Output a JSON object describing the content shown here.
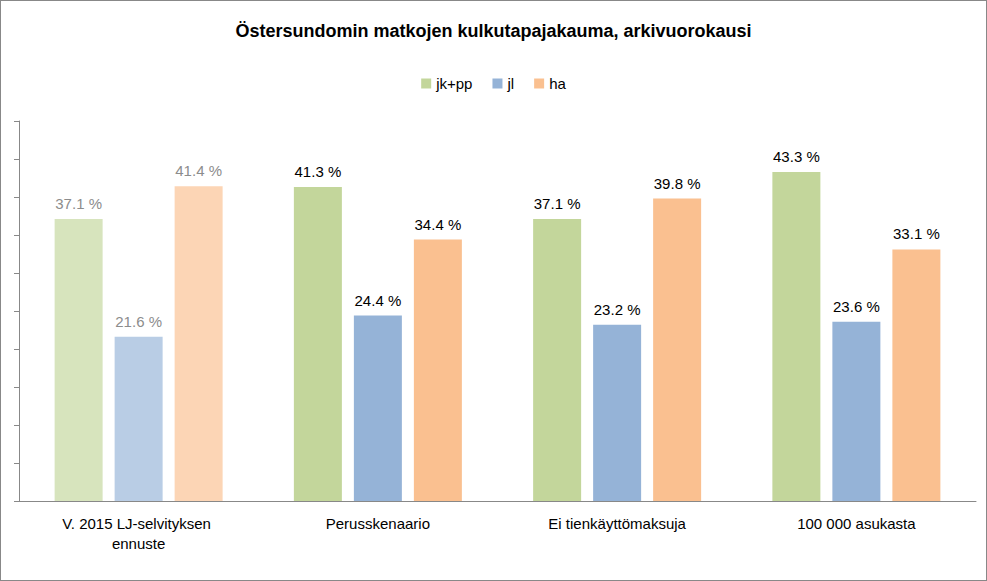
{
  "chart_data": {
    "type": "bar",
    "title": "Östersundomin matkojen kulkutapajakauma, arkivuorokausi",
    "categories": [
      "V. 2015 LJ-selvityksen ennuste",
      "Perusskenaario",
      "Ei tienkäyttömaksuja",
      "100 000 asukasta"
    ],
    "series": [
      {
        "name": "jk+pp",
        "color": "#c3d69b",
        "colors": [
          "#d7e4bd",
          "#c3d69b",
          "#c3d69b",
          "#c3d69b"
        ],
        "values": [
          37.1,
          41.3,
          37.1,
          43.3
        ],
        "value_labels": [
          "37.1 %",
          "41.3 %",
          "37.1 %",
          "43.3 %"
        ]
      },
      {
        "name": "jl",
        "color": "#95b3d7",
        "colors": [
          "#b9cde5",
          "#95b3d7",
          "#95b3d7",
          "#95b3d7"
        ],
        "values": [
          21.6,
          24.4,
          23.2,
          23.6
        ],
        "value_labels": [
          "21.6 %",
          "24.4 %",
          "23.2 %",
          "23.6 %"
        ]
      },
      {
        "name": "ha",
        "color": "#fac090",
        "colors": [
          "#fcd5b5",
          "#fac090",
          "#fac090",
          "#fac090"
        ],
        "values": [
          41.4,
          34.4,
          39.8,
          33.1
        ],
        "value_labels": [
          "41.4 %",
          "34.4 %",
          "39.8 %",
          "33.1 %"
        ]
      }
    ],
    "ylim": [
      0,
      50
    ],
    "yticks": [
      0,
      5,
      10,
      15,
      20,
      25,
      30,
      35,
      40,
      45,
      50
    ],
    "grid": false,
    "legend": "top",
    "data_labels": true,
    "tick_labels": "x"
  }
}
